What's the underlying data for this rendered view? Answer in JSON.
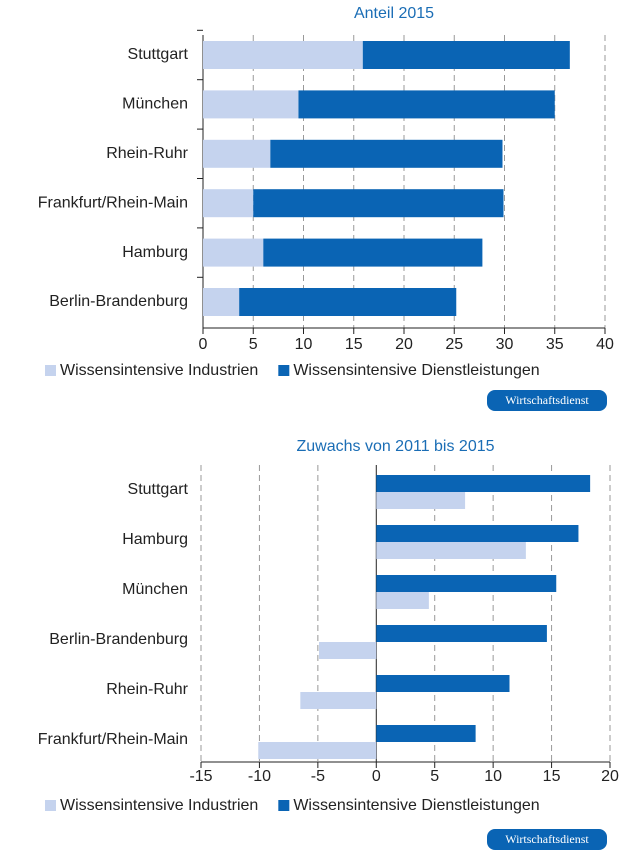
{
  "chart_data": [
    {
      "type": "bar",
      "orientation": "horizontal",
      "stacked": true,
      "title": "Anteil 2015",
      "categories": [
        "Stuttgart",
        "München",
        "Rhein-Ruhr",
        "Frankfurt/Rhein-Main",
        "Hamburg",
        "Berlin-Brandenburg"
      ],
      "series": [
        {
          "name": "Wissensintensive Industrien",
          "color": "#c5d3ee",
          "values": [
            15.9,
            9.5,
            6.7,
            5.0,
            6.0,
            3.6
          ]
        },
        {
          "name": "Wissensintensive Dienstleistungen",
          "color": "#0a64b4",
          "values": [
            20.6,
            25.5,
            23.1,
            24.9,
            21.8,
            21.6
          ]
        }
      ],
      "xlim": [
        0,
        40
      ],
      "xticks": [
        0,
        5,
        10,
        15,
        20,
        25,
        30,
        35,
        40
      ],
      "grid": true,
      "legend": "bottom",
      "badge": "Wirtschaftsdienst"
    },
    {
      "type": "bar",
      "orientation": "horizontal",
      "stacked": false,
      "title": "Zuwachs von 2011 bis 2015",
      "categories": [
        "Stuttgart",
        "Hamburg",
        "München",
        "Berlin-Brandenburg",
        "Rhein-Ruhr",
        "Frankfurt/Rhein-Main"
      ],
      "series": [
        {
          "name": "Wissensintensive Industrien",
          "color": "#c5d3ee",
          "values": [
            7.6,
            12.8,
            4.5,
            -4.9,
            -6.5,
            -10.1
          ]
        },
        {
          "name": "Wissensintensive Dienstleistungen",
          "color": "#0a64b4",
          "values": [
            18.3,
            17.3,
            15.4,
            14.6,
            11.4,
            8.5
          ]
        }
      ],
      "xlim": [
        -15,
        20
      ],
      "xticks": [
        -15,
        -10,
        -5,
        0,
        5,
        10,
        15,
        20
      ],
      "grid": true,
      "legend": "bottom",
      "badge": "Wirtschaftsdienst"
    }
  ]
}
